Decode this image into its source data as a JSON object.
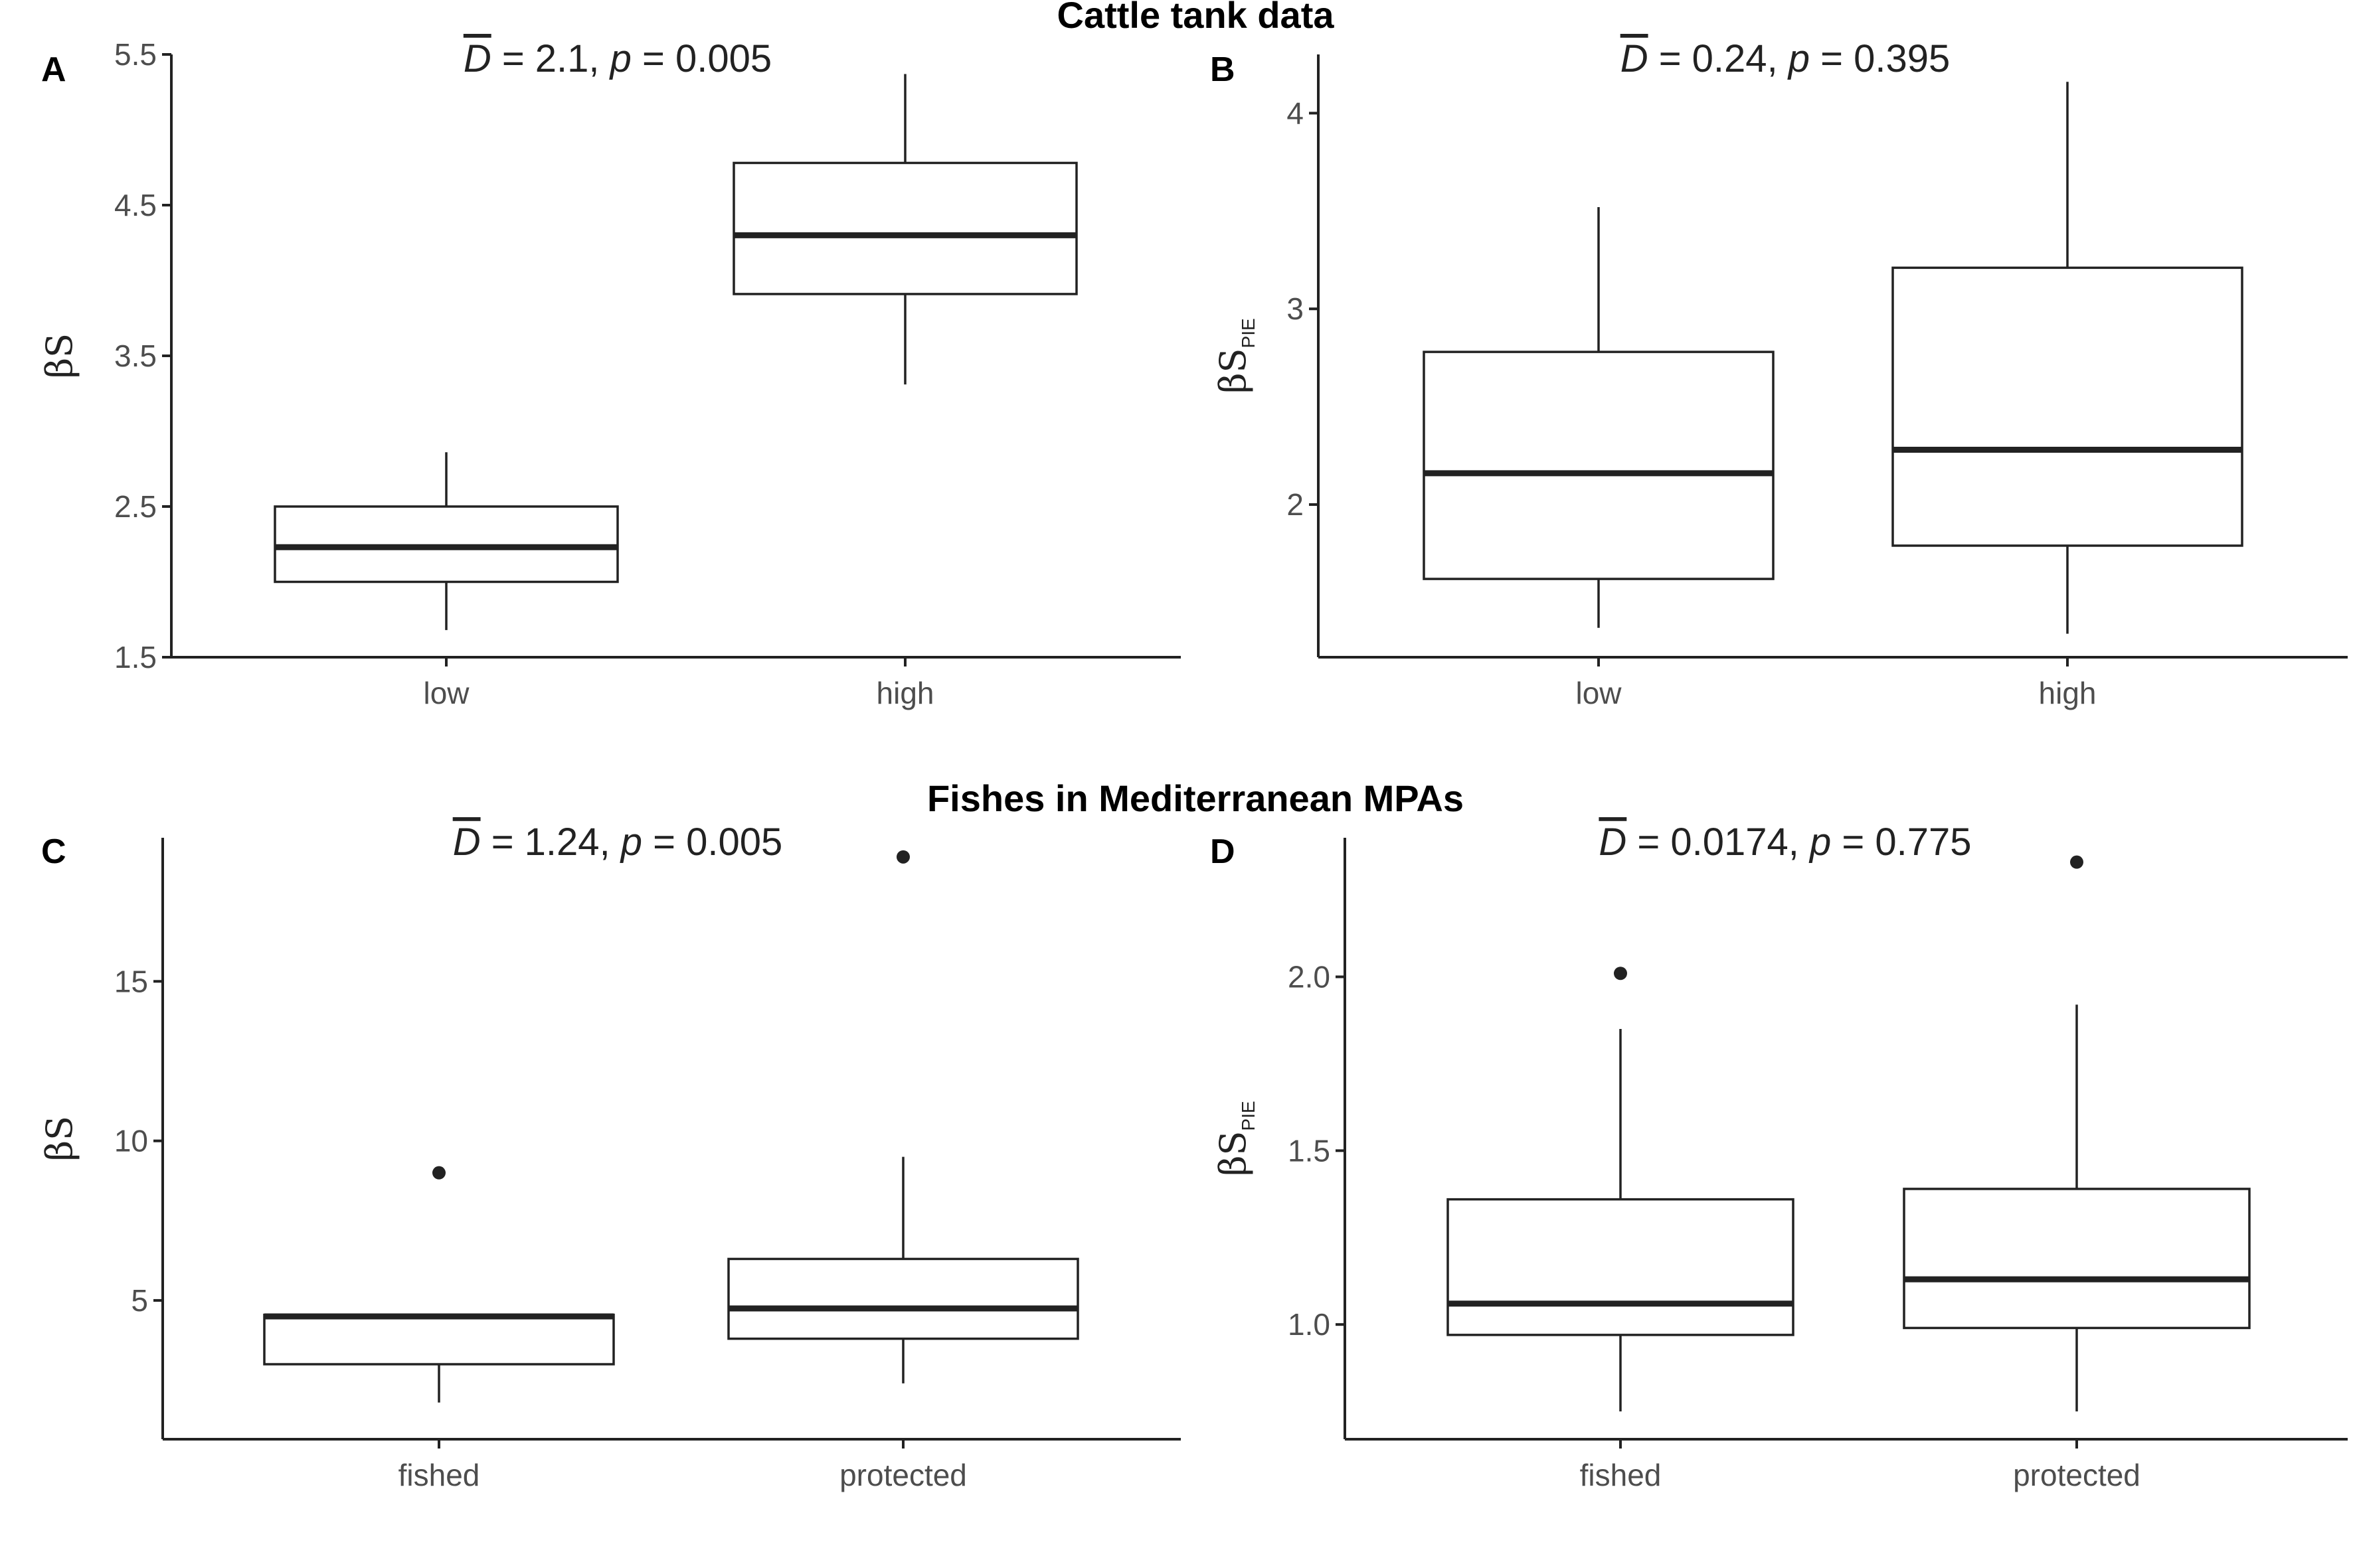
{
  "figure": {
    "section_titles": [
      "Cattle tank data",
      "Fishes in Mediterranean MPAs"
    ]
  },
  "chart_data": [
    {
      "panel": "A",
      "type": "box",
      "annotation": {
        "stat": "D",
        "value": "2.1",
        "p": "0.005"
      },
      "ylabel": {
        "main": "βS",
        "sub": ""
      },
      "ylim": [
        1.5,
        5.5
      ],
      "yticks": [
        1.5,
        2.5,
        3.5,
        4.5,
        5.5
      ],
      "ytick_labels": [
        "1.5",
        "2.5",
        "3.5",
        "4.5",
        "5.5"
      ],
      "categories": [
        "low",
        "high"
      ],
      "boxes": [
        {
          "category": "low",
          "whisker_low": 1.68,
          "q1": 2.0,
          "median": 2.23,
          "q3": 2.5,
          "whisker_high": 2.86,
          "outliers": []
        },
        {
          "category": "high",
          "whisker_low": 3.31,
          "q1": 3.91,
          "median": 4.3,
          "q3": 4.78,
          "whisker_high": 5.37,
          "outliers": []
        }
      ]
    },
    {
      "panel": "B",
      "type": "box",
      "annotation": {
        "stat": "D",
        "value": "0.24",
        "p": "0.395"
      },
      "ylabel": {
        "main": "βS",
        "sub": "PIE"
      },
      "ylim": [
        1.22,
        4.3
      ],
      "yticks": [
        2,
        3,
        4
      ],
      "ytick_labels": [
        "2",
        "3",
        "4"
      ],
      "categories": [
        "low",
        "high"
      ],
      "boxes": [
        {
          "category": "low",
          "whisker_low": 1.37,
          "q1": 1.62,
          "median": 2.16,
          "q3": 2.78,
          "whisker_high": 3.52,
          "outliers": []
        },
        {
          "category": "high",
          "whisker_low": 1.34,
          "q1": 1.79,
          "median": 2.28,
          "q3": 3.21,
          "whisker_high": 4.16,
          "outliers": []
        }
      ]
    },
    {
      "panel": "C",
      "type": "box",
      "annotation": {
        "stat": "D",
        "value": "1.24",
        "p": "0.005"
      },
      "ylabel": {
        "main": "βS",
        "sub": ""
      },
      "ylim": [
        0.65,
        19.5
      ],
      "yticks": [
        5,
        10,
        15
      ],
      "ytick_labels": [
        "5",
        "10",
        "15"
      ],
      "categories": [
        "fished",
        "protected"
      ],
      "boxes": [
        {
          "category": "fished",
          "whisker_low": 1.8,
          "q1": 3.0,
          "median": 4.5,
          "q3": 4.55,
          "whisker_high": 4.55,
          "outliers": [
            9.0
          ]
        },
        {
          "category": "protected",
          "whisker_low": 2.4,
          "q1": 3.8,
          "median": 4.75,
          "q3": 6.3,
          "whisker_high": 9.5,
          "outliers": [
            18.9
          ]
        }
      ]
    },
    {
      "panel": "D",
      "type": "box",
      "annotation": {
        "stat": "D",
        "value": "0.0174",
        "p": "0.775"
      },
      "ylabel": {
        "main": "βS",
        "sub": "PIE"
      },
      "ylim": [
        0.67,
        2.4
      ],
      "yticks": [
        1.0,
        1.5,
        2.0
      ],
      "ytick_labels": [
        "1.0",
        "1.5",
        "2.0"
      ],
      "categories": [
        "fished",
        "protected"
      ],
      "boxes": [
        {
          "category": "fished",
          "whisker_low": 0.75,
          "q1": 0.97,
          "median": 1.06,
          "q3": 1.36,
          "whisker_high": 1.85,
          "outliers": [
            2.01
          ]
        },
        {
          "category": "protected",
          "whisker_low": 0.75,
          "q1": 0.99,
          "median": 1.13,
          "q3": 1.39,
          "whisker_high": 1.92,
          "outliers": [
            2.33
          ]
        }
      ]
    }
  ]
}
